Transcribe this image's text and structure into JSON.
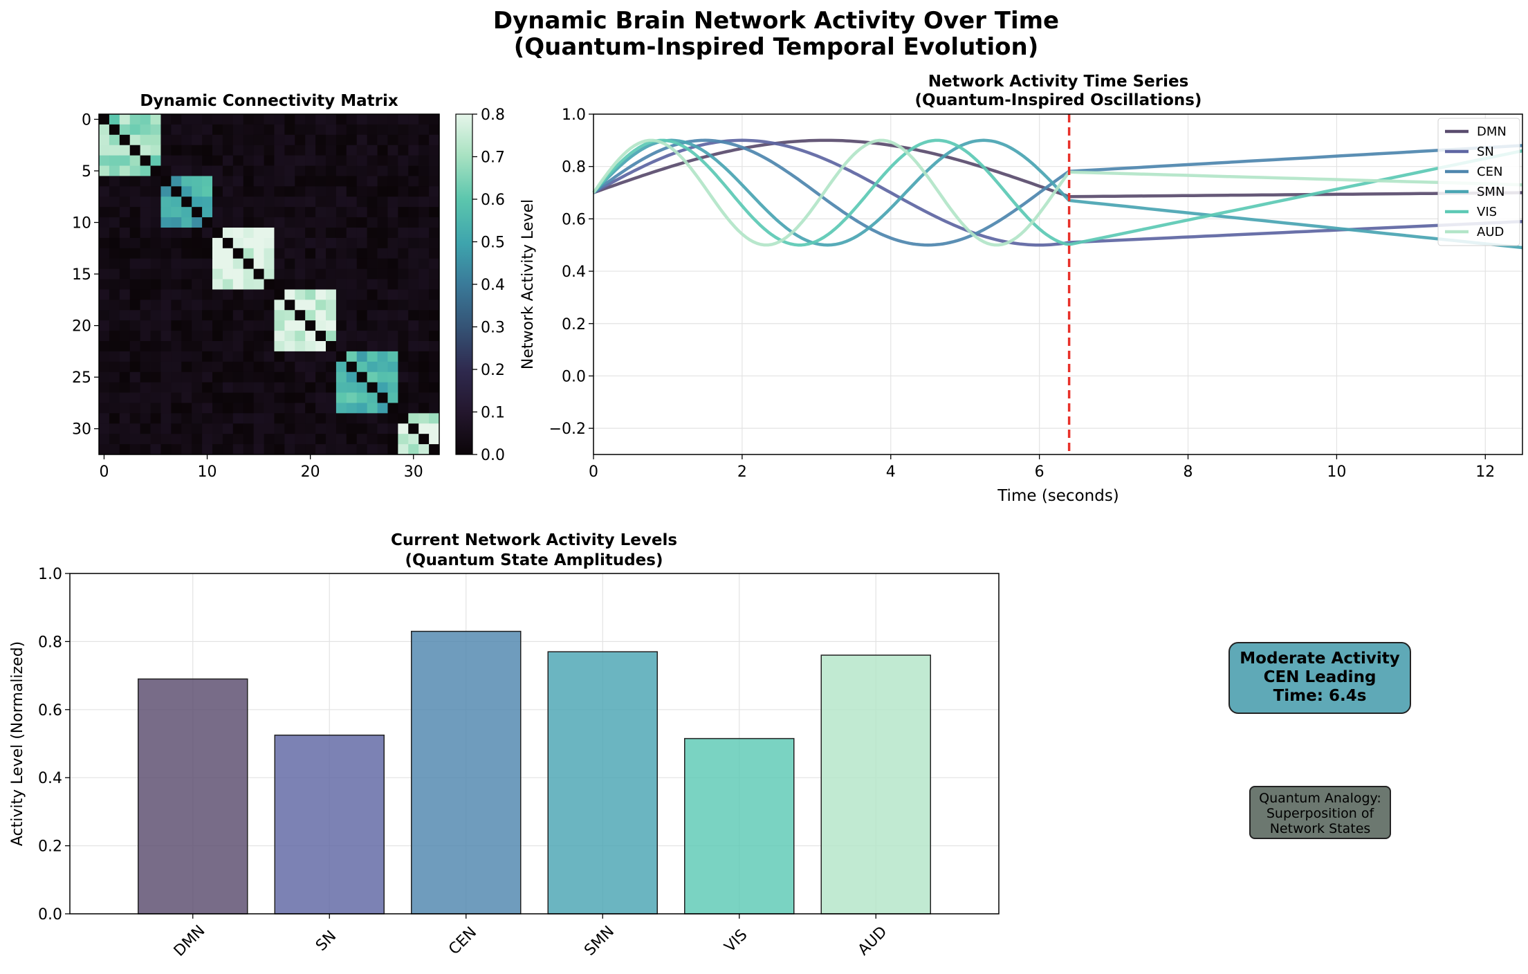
{
  "figure": {
    "title_line1": "Dynamic Brain Network Activity Over Time",
    "title_line2": "(Quantum-Inspired Temporal Evolution)"
  },
  "colors": {
    "DMN": "#5a4c6e",
    "SN": "#5f66a3",
    "CEN": "#4f86ae",
    "SMN": "#4aa5b3",
    "VIS": "#5dc9b5",
    "AUD": "#b3e5c8",
    "marker": "#e8312a"
  },
  "chart_data": [
    {
      "type": "heatmap",
      "title": "Dynamic Connectivity Matrix",
      "size": 33,
      "blocks": [
        {
          "start": 0,
          "end": 5,
          "value": 0.68
        },
        {
          "start": 6,
          "end": 10,
          "value": 0.52
        },
        {
          "start": 11,
          "end": 16,
          "value": 0.79
        },
        {
          "start": 17,
          "end": 22,
          "value": 0.77
        },
        {
          "start": 23,
          "end": 28,
          "value": 0.55
        },
        {
          "start": 29,
          "end": 32,
          "value": 0.76
        }
      ],
      "diagonal_value": 0.0,
      "background_range": [
        0.0,
        0.06
      ],
      "xticks": [
        0,
        10,
        20,
        30
      ],
      "yticks": [
        0,
        5,
        10,
        15,
        20,
        25,
        30
      ],
      "colorbar": {
        "label": "Network Activity Level",
        "range": [
          0.0,
          0.8
        ],
        "ticks": [
          "0.0",
          "0.1",
          "0.2",
          "0.3",
          "0.4",
          "0.5",
          "0.6",
          "0.7",
          "0.8"
        ]
      }
    },
    {
      "type": "line",
      "title_line1": "Network Activity Time Series",
      "title_line2": "(Quantum-Inspired Oscillations)",
      "xlabel": "Time (seconds)",
      "ylabel": "",
      "xlim": [
        0,
        12.5
      ],
      "ylim": [
        -0.3,
        1.0
      ],
      "xticks": [
        "0",
        "2",
        "4",
        "6",
        "8",
        "10",
        "12"
      ],
      "yticks": [
        "−0.2",
        "0.0",
        "0.2",
        "0.4",
        "0.6",
        "0.8",
        "1.0"
      ],
      "grid": true,
      "legend_position": "top-right",
      "current_time": 6.4,
      "series": [
        {
          "name": "DMN",
          "mean": 0.7,
          "amplitude": 0.2,
          "period": 12.5,
          "end_value": 0.7
        },
        {
          "name": "SN",
          "mean": 0.7,
          "amplitude": 0.2,
          "period": 8.0,
          "end_value": 0.59
        },
        {
          "name": "CEN",
          "mean": 0.7,
          "amplitude": 0.2,
          "period": 6.0,
          "end_value": 0.88
        },
        {
          "name": "SMN",
          "mean": 0.7,
          "amplitude": 0.2,
          "period": 4.2,
          "end_value": 0.49
        },
        {
          "name": "VIS",
          "mean": 0.7,
          "amplitude": 0.2,
          "period": 3.7,
          "end_value": 0.86
        },
        {
          "name": "AUD",
          "mean": 0.7,
          "amplitude": 0.2,
          "period": 3.1,
          "end_value": 0.73
        }
      ]
    },
    {
      "type": "bar",
      "title_line1": "Current Network Activity Levels",
      "title_line2": "(Quantum State Amplitudes)",
      "categories": [
        "DMN",
        "SN",
        "CEN",
        "SMN",
        "VIS",
        "AUD"
      ],
      "values": [
        0.69,
        0.525,
        0.83,
        0.77,
        0.515,
        0.76
      ],
      "xlabel": "",
      "ylabel": "Activity Level (Normalized)",
      "ylim": [
        0.0,
        1.0
      ],
      "yticks": [
        "0.0",
        "0.2",
        "0.4",
        "0.6",
        "0.8",
        "1.0"
      ],
      "grid": true
    }
  ],
  "status_box": {
    "line1": "Moderate Activity",
    "line2": "CEN Leading",
    "line3": "Time: 6.4s"
  },
  "analogy_box": {
    "line1": "Quantum Analogy:",
    "line2": "Superposition of",
    "line3": "Network States"
  }
}
